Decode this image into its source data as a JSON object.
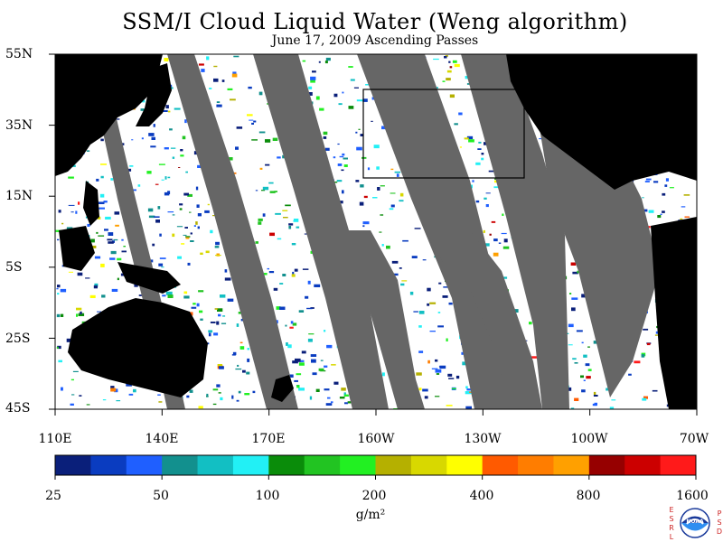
{
  "title": "SSM/I Cloud Liquid Water (Weng algorithm)",
  "subtitle": "June 17, 2009  Ascending Passes",
  "lat_labels": [
    "55N",
    "35N",
    "15N",
    "5S",
    "25S",
    "45S"
  ],
  "lon_labels": [
    "110E",
    "140E",
    "170E",
    "160W",
    "130W",
    "100W",
    "70W"
  ],
  "colorbar": {
    "tick_labels": [
      "25",
      "50",
      "100",
      "200",
      "400",
      "800",
      "1600"
    ],
    "units": "g/m²",
    "colors": [
      "#0a1f7a",
      "#0a3cc0",
      "#1f5fff",
      "#12908e",
      "#12bfc3",
      "#22f0f5",
      "#0a8c0a",
      "#22c422",
      "#22f022",
      "#b5b000",
      "#d8d800",
      "#ffff00",
      "#ff5a00",
      "#ff7d00",
      "#ffa000",
      "#960000",
      "#cc0000",
      "#ff1a1a"
    ]
  },
  "colors": {
    "land": "#000000",
    "missing_data": "#666666",
    "clear_ocean": "#ffffff",
    "region_box": "#000000",
    "logo_accent": "#cc2222"
  },
  "logo": {
    "left_letters": [
      "E",
      "S",
      "R",
      "L"
    ],
    "right_letters": [
      "P",
      "S",
      "D"
    ],
    "emblem": "NOAA",
    "icon": "noaa-logo-icon"
  }
}
